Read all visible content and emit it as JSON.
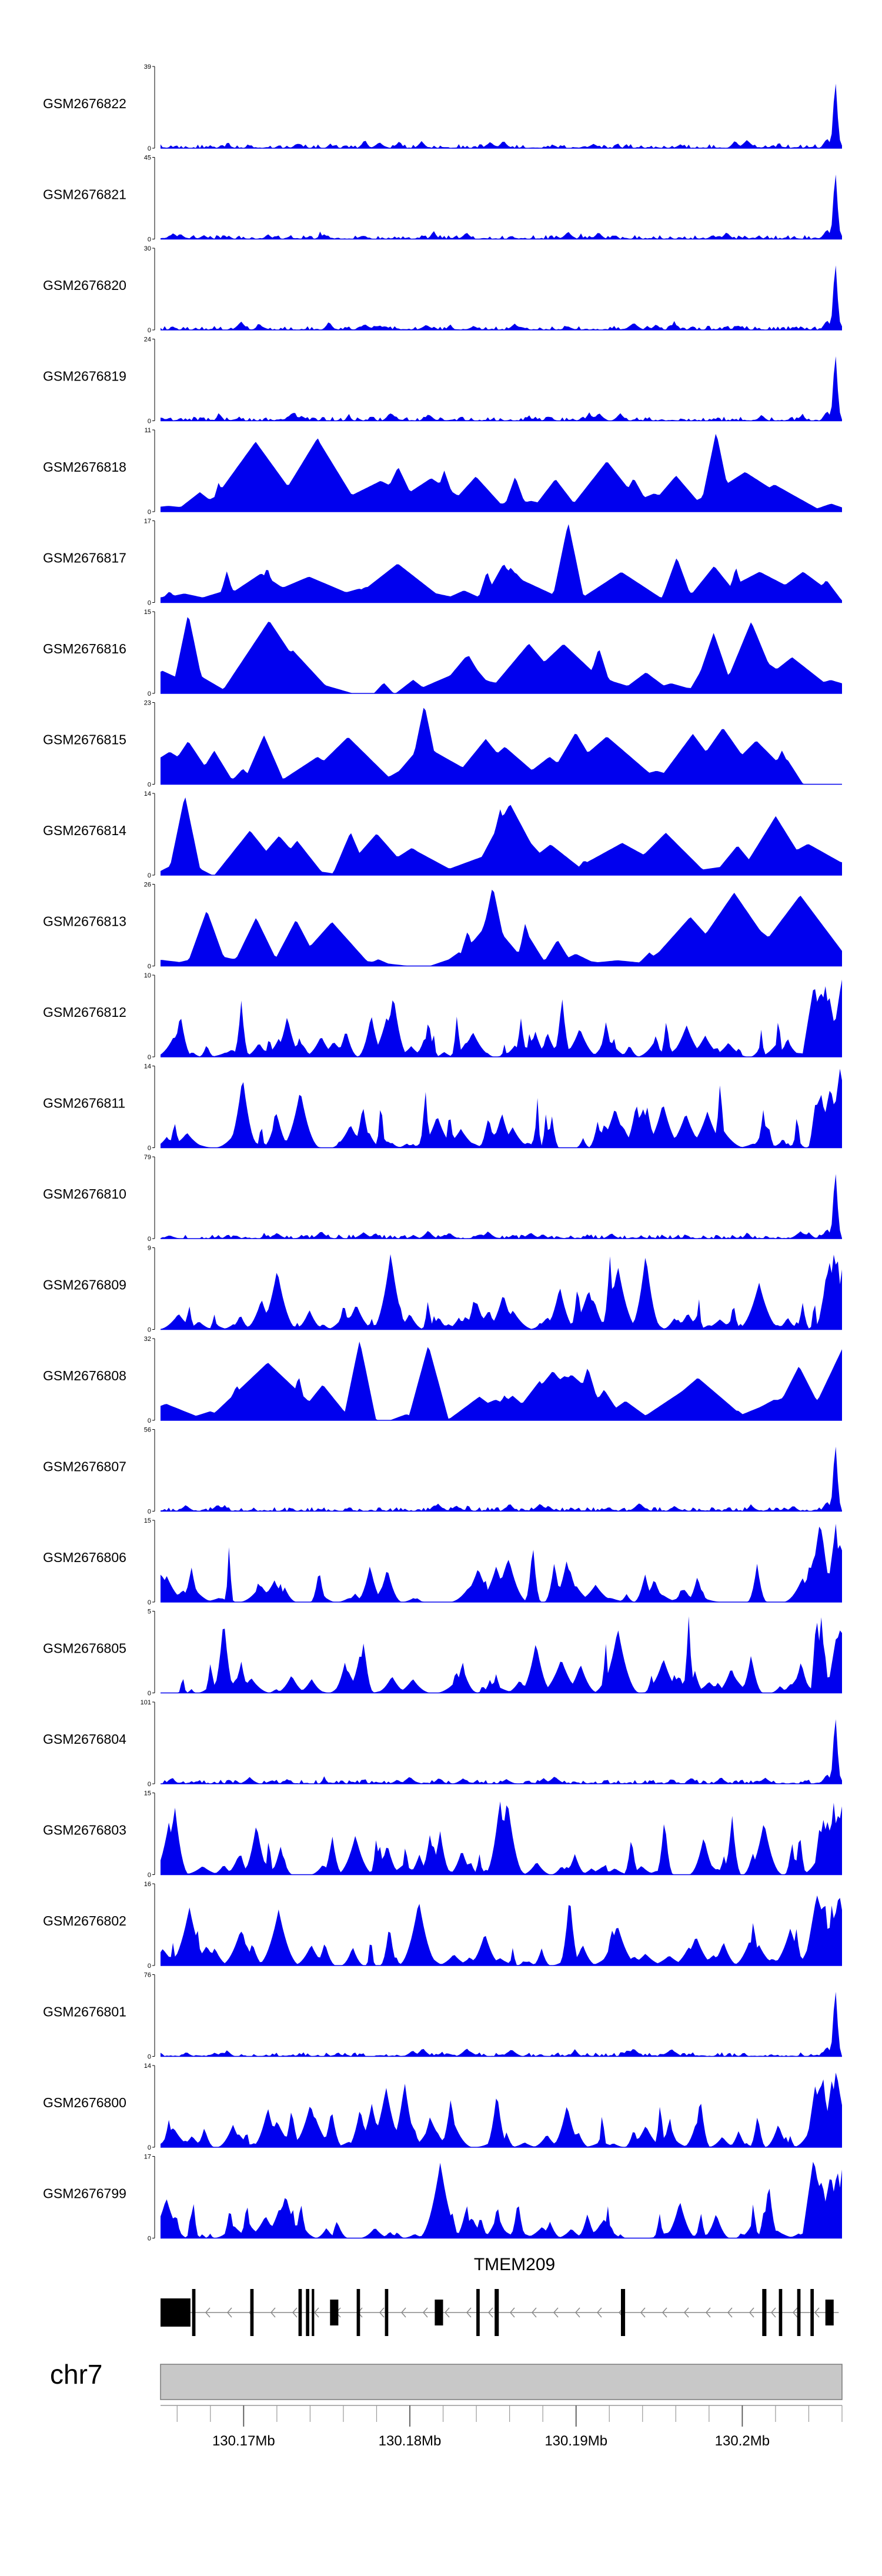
{
  "chart_data": {
    "type": "area",
    "chromosome": "chr7",
    "x_range": [
      130165000,
      130206000
    ],
    "x_ticks": [
      {
        "pos": 130170000,
        "label": "130.17Mb"
      },
      {
        "pos": 130180000,
        "label": "130.18Mb"
      },
      {
        "pos": 130190000,
        "label": "130.19Mb"
      },
      {
        "pos": 130200000,
        "label": "130.2Mb"
      }
    ],
    "tracks": [
      {
        "sample": "GSM2676822",
        "ymax": 39,
        "ymin": 0,
        "style": "promoter",
        "seed": 11
      },
      {
        "sample": "GSM2676821",
        "ymax": 45,
        "ymin": 0,
        "style": "promoter",
        "seed": 12
      },
      {
        "sample": "GSM2676820",
        "ymax": 30,
        "ymin": 0,
        "style": "promoter",
        "seed": 13
      },
      {
        "sample": "GSM2676819",
        "ymax": 24,
        "ymin": 0,
        "style": "promoter",
        "seed": 14
      },
      {
        "sample": "GSM2676818",
        "ymax": 11,
        "ymin": 0,
        "style": "sparse",
        "seed": 15
      },
      {
        "sample": "GSM2676817",
        "ymax": 17,
        "ymin": 0,
        "style": "sparse",
        "seed": 16
      },
      {
        "sample": "GSM2676816",
        "ymax": 15,
        "ymin": 0,
        "style": "sparse",
        "seed": 17
      },
      {
        "sample": "GSM2676815",
        "ymax": 23,
        "ymin": 0,
        "style": "sparse",
        "seed": 18
      },
      {
        "sample": "GSM2676814",
        "ymax": 14,
        "ymin": 0,
        "style": "sparse",
        "seed": 19
      },
      {
        "sample": "GSM2676813",
        "ymax": 26,
        "ymin": 0,
        "style": "sparse",
        "seed": 20
      },
      {
        "sample": "GSM2676812",
        "ymax": 10,
        "ymin": 0,
        "style": "dense",
        "seed": 21
      },
      {
        "sample": "GSM2676811",
        "ymax": 14,
        "ymin": 0,
        "style": "dense",
        "seed": 22
      },
      {
        "sample": "GSM2676810",
        "ymax": 79,
        "ymin": 0,
        "style": "promoter",
        "seed": 23
      },
      {
        "sample": "GSM2676809",
        "ymax": 9,
        "ymin": 0,
        "style": "dense",
        "seed": 24
      },
      {
        "sample": "GSM2676808",
        "ymax": 32,
        "ymin": 0,
        "style": "sparse",
        "seed": 25
      },
      {
        "sample": "GSM2676807",
        "ymax": 56,
        "ymin": 0,
        "style": "promoter",
        "seed": 26
      },
      {
        "sample": "GSM2676806",
        "ymax": 15,
        "ymin": 0,
        "style": "dense",
        "seed": 27
      },
      {
        "sample": "GSM2676805",
        "ymax": 5,
        "ymin": 0,
        "style": "dense",
        "seed": 28
      },
      {
        "sample": "GSM2676804",
        "ymax": 101,
        "ymin": 0,
        "style": "promoter",
        "seed": 29
      },
      {
        "sample": "GSM2676803",
        "ymax": 15,
        "ymin": 0,
        "style": "dense",
        "seed": 30
      },
      {
        "sample": "GSM2676802",
        "ymax": 16,
        "ymin": 0,
        "style": "dense",
        "seed": 31
      },
      {
        "sample": "GSM2676801",
        "ymax": 76,
        "ymin": 0,
        "style": "promoter",
        "seed": 32
      },
      {
        "sample": "GSM2676800",
        "ymax": 14,
        "ymin": 0,
        "style": "dense",
        "seed": 33
      },
      {
        "sample": "GSM2676799",
        "ymax": 17,
        "ymin": 0,
        "style": "dense",
        "seed": 34
      }
    ],
    "gene": {
      "name": "TMEM209",
      "strand": "-",
      "start": 130165000,
      "end": 130205800,
      "exons": [
        [
          130165000,
          130166800
        ],
        [
          130166900,
          130167100
        ],
        [
          130170400,
          130170600
        ],
        [
          130173300,
          130173500
        ],
        [
          130173750,
          130173950
        ],
        [
          130174100,
          130174250
        ],
        [
          130175200,
          130175700
        ],
        [
          130176800,
          130177000
        ],
        [
          130178500,
          130178700
        ],
        [
          130181500,
          130182000
        ],
        [
          130184000,
          130184200
        ],
        [
          130185100,
          130185350
        ],
        [
          130192700,
          130192950
        ],
        [
          130201200,
          130201450
        ],
        [
          130202200,
          130202400
        ],
        [
          130203300,
          130203500
        ],
        [
          130204100,
          130204300
        ],
        [
          130205000,
          130205500
        ]
      ]
    },
    "colors": {
      "signal": "#0000ee",
      "axis": "#000000",
      "ideogram_fill": "#c8c8c8",
      "ideogram_stroke": "#7a7a7a"
    }
  }
}
